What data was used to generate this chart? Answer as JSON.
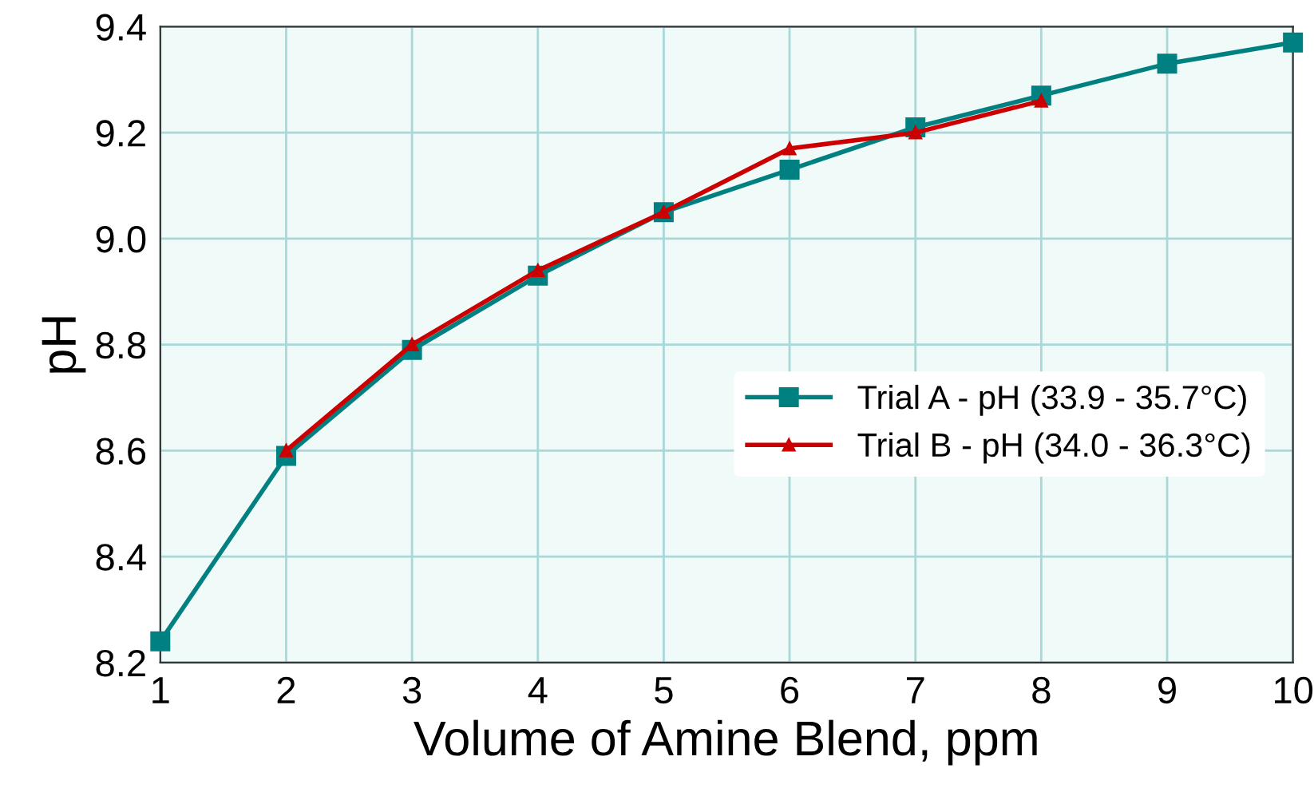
{
  "chart_data": {
    "type": "line",
    "xlabel": "Volume of Amine Blend, ppm",
    "ylabel": "pH",
    "x": [
      1,
      2,
      3,
      4,
      5,
      6,
      7,
      8,
      9,
      10
    ],
    "series": [
      {
        "name": "Trial A - pH (33.9 - 35.7°C)",
        "color": "#008080",
        "marker": "square",
        "values": [
          8.24,
          8.59,
          8.79,
          8.93,
          9.05,
          9.13,
          9.21,
          9.27,
          9.33,
          9.37
        ]
      },
      {
        "name": "Trial B - pH (34.0 - 36.3°C)",
        "color": "#cc0000",
        "marker": "triangle",
        "values": [
          null,
          8.6,
          8.8,
          8.94,
          9.05,
          9.17,
          9.2,
          9.26,
          null,
          null
        ]
      }
    ],
    "xlim": [
      1,
      10
    ],
    "xticks": [
      1,
      2,
      3,
      4,
      5,
      6,
      7,
      8,
      9,
      10
    ],
    "ylim": [
      8.2,
      9.4
    ],
    "yticks": [
      {
        "value": 8.2,
        "label": "8.2"
      },
      {
        "value": 8.4,
        "label": "8.4"
      },
      {
        "value": 8.6,
        "label": "8.6"
      },
      {
        "value": 8.8,
        "label": "8.8"
      },
      {
        "value": 9.0,
        "label": "9.0"
      },
      {
        "value": 9.2,
        "label": "9.2"
      },
      {
        "value": 9.4,
        "label": "9.4"
      }
    ],
    "grid": true,
    "legend": "center right",
    "line_style": "solid"
  }
}
